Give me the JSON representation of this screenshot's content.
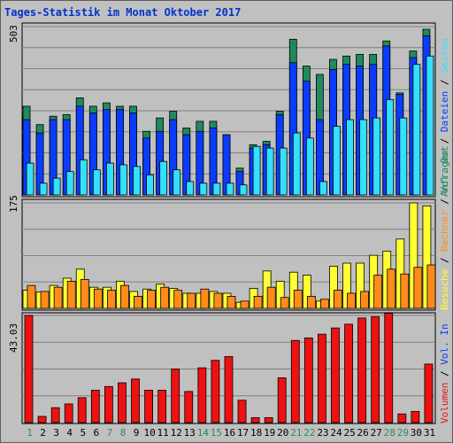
{
  "title": "Tages-Statistik im Monat Oktober 2017",
  "colors": {
    "anfragen": "#1f8a5a",
    "dateien": "#0a3cff",
    "seiten": "#33e0ff",
    "besuche": "#ffff33",
    "rechner": "#ff8c1a",
    "volumen": "#ee1111",
    "weekend_label": "#2e8b57",
    "weekday_label": "#000000",
    "grid": "#808080",
    "plot_bg": "#c0c0c0"
  },
  "legend_top": {
    "anfragen": "Anfragen",
    "dateien": "Dateien",
    "seiten": "Seiten"
  },
  "legend_mid": {
    "besuche": "Besuche",
    "rechner": "Rechner",
    "volout": "Vol. Out"
  },
  "legend_bot": {
    "volin": "Vol. In",
    "volumen": "Volumen"
  },
  "separator": " / ",
  "chart_data": [
    {
      "type": "bar",
      "title": "Tages-Statistik im Monat Oktober 2017",
      "ymax_label": "503",
      "ylim": [
        0,
        503
      ],
      "categories": [
        "1",
        "2",
        "3",
        "4",
        "5",
        "6",
        "7",
        "8",
        "9",
        "10",
        "11",
        "12",
        "13",
        "14",
        "15",
        "16",
        "17",
        "18",
        "19",
        "20",
        "21",
        "22",
        "23",
        "24",
        "25",
        "26",
        "27",
        "28",
        "29",
        "30",
        "31"
      ],
      "weekend_days": [
        "1",
        "7",
        "8",
        "14",
        "15",
        "21",
        "22",
        "28",
        "29"
      ],
      "series": [
        {
          "name": "Anfragen",
          "values": [
            265,
            210,
            235,
            240,
            290,
            265,
            275,
            265,
            265,
            190,
            230,
            250,
            200,
            220,
            220,
            180,
            80,
            150,
            160,
            250,
            465,
            385,
            360,
            405,
            415,
            420,
            420,
            460,
            305,
            430,
            495
          ]
        },
        {
          "name": "Dateien",
          "values": [
            225,
            185,
            225,
            225,
            265,
            245,
            255,
            255,
            245,
            170,
            190,
            225,
            180,
            190,
            200,
            180,
            70,
            140,
            150,
            240,
            395,
            340,
            225,
            375,
            390,
            385,
            390,
            445,
            300,
            410,
            475
          ]
        },
        {
          "name": "Seiten",
          "values": [
            95,
            35,
            50,
            70,
            105,
            75,
            95,
            90,
            85,
            60,
            100,
            75,
            40,
            35,
            35,
            35,
            30,
            145,
            140,
            140,
            185,
            170,
            40,
            205,
            225,
            225,
            230,
            285,
            230,
            390,
            415
          ]
        }
      ]
    },
    {
      "type": "bar",
      "ymax_label": "175",
      "ylim": [
        0,
        175
      ],
      "categories": [
        "1",
        "2",
        "3",
        "4",
        "5",
        "6",
        "7",
        "8",
        "9",
        "10",
        "11",
        "12",
        "13",
        "14",
        "15",
        "16",
        "17",
        "18",
        "19",
        "20",
        "21",
        "22",
        "23",
        "24",
        "25",
        "26",
        "27",
        "28",
        "29",
        "30",
        "31"
      ],
      "series": [
        {
          "name": "Besuche",
          "values": [
            30,
            27,
            38,
            50,
            65,
            35,
            35,
            45,
            28,
            32,
            40,
            33,
            25,
            25,
            28,
            25,
            10,
            33,
            62,
            45,
            60,
            55,
            12,
            70,
            75,
            75,
            88,
            95,
            115,
            175,
            170
          ]
        },
        {
          "name": "Rechner",
          "values": [
            38,
            28,
            35,
            45,
            48,
            32,
            30,
            38,
            20,
            30,
            35,
            30,
            25,
            32,
            25,
            20,
            12,
            20,
            35,
            18,
            30,
            20,
            15,
            30,
            25,
            28,
            55,
            65,
            57,
            68,
            72
          ]
        }
      ]
    },
    {
      "type": "bar",
      "ymax_label": "43.03",
      "ylim": [
        0,
        43.03
      ],
      "categories": [
        "1",
        "2",
        "3",
        "4",
        "5",
        "6",
        "7",
        "8",
        "9",
        "10",
        "11",
        "12",
        "13",
        "14",
        "15",
        "16",
        "17",
        "18",
        "19",
        "20",
        "21",
        "22",
        "23",
        "24",
        "25",
        "26",
        "27",
        "28",
        "29",
        "30",
        "31"
      ],
      "series": [
        {
          "name": "Volumen",
          "values": [
            43.03,
            2.5,
            6,
            7.5,
            10,
            13,
            14.5,
            16,
            17.5,
            13,
            13,
            21.5,
            12.5,
            22,
            25,
            26.5,
            9,
            2,
            2,
            18,
            33,
            34,
            35.5,
            38,
            39.5,
            42,
            42.5,
            44,
            3.5,
            4.5,
            23.5
          ]
        }
      ]
    }
  ]
}
